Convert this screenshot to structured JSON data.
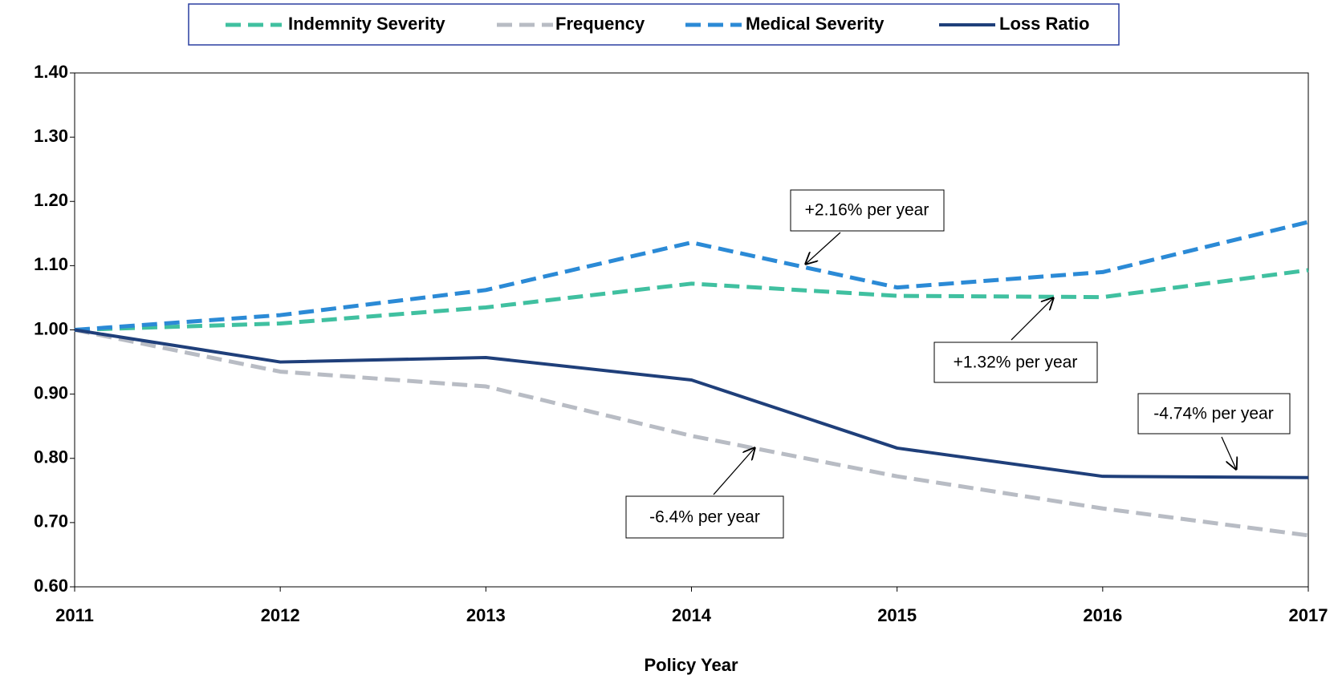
{
  "chart_data": {
    "type": "line",
    "x_label": "Policy Year",
    "categories": [
      "2011",
      "2012",
      "2013",
      "2014",
      "2015",
      "2016",
      "2017"
    ],
    "series": [
      {
        "name": "Indemnity Severity",
        "color": "#40c0a0",
        "dashed": true,
        "values": [
          1.0,
          1.01,
          1.035,
          1.072,
          1.053,
          1.051,
          1.093
        ]
      },
      {
        "name": "Frequency",
        "color": "#b8bcc4",
        "dashed": true,
        "values": [
          1.0,
          0.935,
          0.912,
          0.835,
          0.772,
          0.722,
          0.68
        ]
      },
      {
        "name": "Medical Severity",
        "color": "#2b8ad6",
        "dashed": true,
        "values": [
          1.0,
          1.023,
          1.062,
          1.136,
          1.066,
          1.09,
          1.168
        ]
      },
      {
        "name": "Loss Ratio",
        "color": "#1f3f7a",
        "dashed": false,
        "values": [
          1.0,
          0.95,
          0.957,
          0.922,
          0.816,
          0.772,
          0.77
        ]
      }
    ],
    "annotations": [
      "+2.16% per year",
      "+1.32% per year",
      "-4.74% per year",
      "-6.4% per year"
    ],
    "ylim": [
      0.6,
      1.4
    ],
    "yticks": [
      {
        "value": 0.6,
        "label": "0.60"
      },
      {
        "value": 0.7,
        "label": "0.70"
      },
      {
        "value": 0.8,
        "label": "0.80"
      },
      {
        "value": 0.9,
        "label": "0.90"
      },
      {
        "value": 1.0,
        "label": "1.00"
      },
      {
        "value": 1.1,
        "label": "1.10"
      },
      {
        "value": 1.2,
        "label": "1.20"
      },
      {
        "value": 1.3,
        "label": "1.30"
      },
      {
        "value": 1.4,
        "label": "1.40"
      }
    ],
    "legend": "top"
  }
}
